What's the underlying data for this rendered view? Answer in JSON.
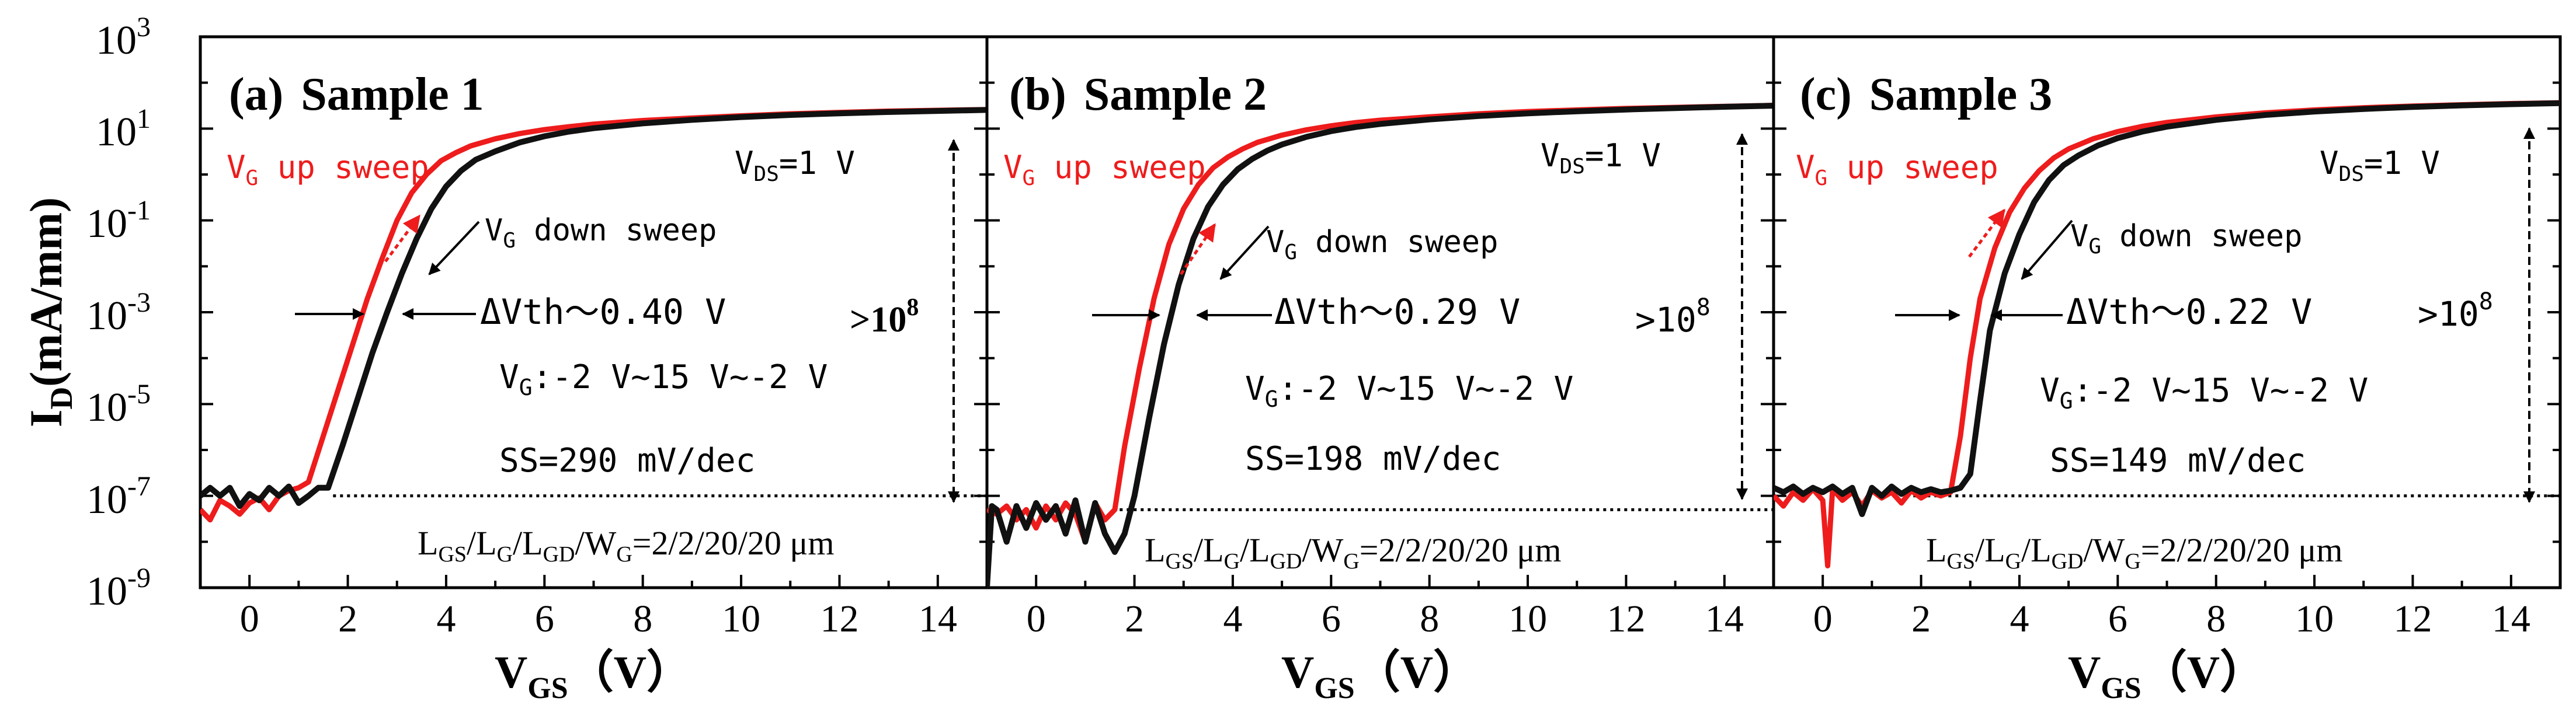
{
  "figure": {
    "ylabel": {
      "main": "I",
      "sub": "D",
      "rest": "(mA/mm)"
    },
    "xlabel": {
      "main": "V",
      "sub": "GS",
      "rest": "（V）"
    },
    "yticks": [
      {
        "base": "10",
        "exp": "3"
      },
      {
        "base": "10",
        "exp": "1"
      },
      {
        "base": "10",
        "exp": "-1"
      },
      {
        "base": "10",
        "exp": "-3"
      },
      {
        "base": "10",
        "exp": "-5"
      },
      {
        "base": "10",
        "exp": "-7"
      },
      {
        "base": "10",
        "exp": "-9"
      }
    ],
    "xticks": [
      "0",
      "2",
      "4",
      "6",
      "8",
      "10",
      "12",
      "14"
    ],
    "colors": {
      "up": "#ee1c1c",
      "down": "#111111",
      "axis": "#000000"
    },
    "common": {
      "up_sweep": {
        "v": "V",
        "sub": "G",
        "text": " up sweep"
      },
      "down_sweep": {
        "v": "V",
        "sub": "G",
        "text": " down sweep"
      },
      "vds": {
        "v": "V",
        "sub": "DS",
        "text": "=1 V"
      },
      "vg_range": {
        "v": "V",
        "sub": "G",
        "text": ":-2 V~15 V~-2 V"
      },
      "geometry_label": {
        "l": "L",
        "s1": "GS",
        "t1": "/L",
        "s2": "G",
        "t2": "/L",
        "s3": "GD",
        "t3": "/W",
        "s4": "G",
        "t4": "=2/2/20/20 μm"
      }
    }
  },
  "chart_data": [
    {
      "type": "line",
      "panel_label": "(a)",
      "title": "Sample 1",
      "delta_vth": "ΔVth～0.40 V",
      "ratio": {
        "base": ">10",
        "exp": "8"
      },
      "ss": "SS=290 mV/dec",
      "xlabel": "VGS (V)",
      "ylabel": "ID (mA/mm)",
      "yscale": "log",
      "xlim": [
        -1,
        15
      ],
      "ylim": [
        1e-09,
        1000
      ],
      "floor_line": 1e-07,
      "series": [
        {
          "name": "VG up sweep",
          "color": "#ee1c1c",
          "x": [
            -1.0,
            -0.8,
            -0.6,
            -0.4,
            -0.2,
            0.0,
            0.2,
            0.4,
            0.6,
            0.8,
            1.0,
            1.2,
            1.5,
            1.8,
            2.1,
            2.4,
            2.7,
            3.0,
            3.3,
            3.6,
            3.9,
            4.2,
            4.5,
            5.0,
            5.5,
            6.0,
            6.5,
            7.0,
            8.0,
            9.0,
            10.0,
            11.0,
            12.0,
            13.0,
            14.0,
            15.0
          ],
          "y": [
            5e-08,
            3e-08,
            8e-08,
            6e-08,
            4e-08,
            7e-08,
            9e-08,
            5e-08,
            1e-07,
            1.3e-07,
            1.5e-07,
            2e-07,
            2e-06,
            2e-05,
            0.0002,
            0.002,
            0.015,
            0.1,
            0.4,
            1.0,
            2.0,
            3.0,
            4.2,
            6.0,
            7.8,
            9.5,
            11,
            12.5,
            15,
            17,
            19,
            21,
            22.5,
            24,
            25,
            26
          ]
        },
        {
          "name": "VG down sweep",
          "color": "#111111",
          "x": [
            -1.0,
            -0.8,
            -0.6,
            -0.4,
            -0.2,
            0.0,
            0.2,
            0.4,
            0.6,
            0.8,
            1.0,
            1.2,
            1.4,
            1.6,
            1.9,
            2.2,
            2.5,
            2.8,
            3.1,
            3.4,
            3.7,
            4.0,
            4.3,
            4.6,
            5.0,
            5.5,
            6.0,
            6.5,
            7.0,
            8.0,
            9.0,
            10.0,
            11.0,
            12.0,
            13.0,
            14.0,
            15.0
          ],
          "y": [
            1e-07,
            1.5e-07,
            1e-07,
            1.5e-07,
            6e-08,
            1.1e-07,
            8e-08,
            1.5e-07,
            1e-07,
            1.6e-07,
            7e-08,
            1e-07,
            1.5e-07,
            1.5e-07,
            1.3e-06,
            1.3e-05,
            0.00013,
            0.001,
            0.007,
            0.04,
            0.18,
            0.55,
            1.2,
            2.1,
            3.2,
            5.0,
            6.8,
            8.6,
            10.2,
            13,
            15.5,
            17.8,
            19.8,
            21.5,
            23,
            24.2,
            25.5
          ]
        }
      ]
    },
    {
      "type": "line",
      "panel_label": "(b)",
      "title": "Sample 2",
      "delta_vth": "ΔVth～0.29 V",
      "ratio": {
        "base": ">10",
        "exp": "8"
      },
      "ss": "SS=198 mV/dec",
      "xlabel": "VGS (V)",
      "ylabel": "ID (mA/mm)",
      "yscale": "log",
      "xlim": [
        -1,
        15
      ],
      "ylim": [
        1e-09,
        1000
      ],
      "floor_line": 5e-08,
      "series": [
        {
          "name": "VG up sweep",
          "color": "#ee1c1c",
          "x": [
            -1.0,
            -0.8,
            -0.6,
            -0.4,
            -0.2,
            0.0,
            0.2,
            0.4,
            0.6,
            0.8,
            1.0,
            1.2,
            1.4,
            1.6,
            1.8,
            2.1,
            2.4,
            2.7,
            3.0,
            3.3,
            3.6,
            3.9,
            4.2,
            4.5,
            5.0,
            5.5,
            6.0,
            6.5,
            7.0,
            8.0,
            9.0,
            10.0,
            11.0,
            12.0,
            13.0,
            14.0,
            15.0
          ],
          "y": [
            5e-08,
            4e-08,
            6e-08,
            3e-08,
            5e-08,
            2e-08,
            6e-08,
            3e-08,
            7e-08,
            4e-08,
            1e-08,
            7e-08,
            3e-08,
            5e-08,
            1.2e-06,
            6e-05,
            0.002,
            0.03,
            0.18,
            0.6,
            1.4,
            2.4,
            3.6,
            5.0,
            7.2,
            9.4,
            11.5,
            13.5,
            15.2,
            18,
            21,
            23.5,
            25.5,
            27.5,
            29,
            30.5,
            32
          ]
        },
        {
          "name": "VG down sweep",
          "color": "#111111",
          "x": [
            -1.0,
            -0.9,
            -0.8,
            -0.6,
            -0.4,
            -0.2,
            0.0,
            0.2,
            0.4,
            0.6,
            0.8,
            1.0,
            1.2,
            1.4,
            1.6,
            1.8,
            2.0,
            2.3,
            2.6,
            2.9,
            3.2,
            3.5,
            3.8,
            4.1,
            4.4,
            4.7,
            5.0,
            5.5,
            6.0,
            6.5,
            7.0,
            8.0,
            9.0,
            10.0,
            11.0,
            12.0,
            13.0,
            14.0,
            15.0
          ],
          "y": [
            1e-09,
            6e-08,
            5e-08,
            1e-08,
            6e-08,
            2e-08,
            7e-08,
            3e-08,
            6e-08,
            1.5e-08,
            8e-08,
            1e-08,
            7e-08,
            1.5e-08,
            6e-09,
            1.5e-08,
            1e-07,
            5e-06,
            0.0002,
            0.004,
            0.04,
            0.2,
            0.6,
            1.3,
            2.2,
            3.3,
            4.5,
            6.6,
            8.8,
            10.8,
            12.6,
            15.8,
            18.8,
            21.5,
            23.8,
            26,
            28,
            29.8,
            31.5
          ]
        }
      ]
    },
    {
      "type": "line",
      "panel_label": "(c)",
      "title": "Sample 3",
      "delta_vth": "ΔVth～0.22 V",
      "ratio": {
        "base": ">10",
        "exp": "8"
      },
      "ss": "SS=149 mV/dec",
      "xlabel": "VGS (V)",
      "ylabel": "ID (mA/mm)",
      "yscale": "log",
      "xlim": [
        -1,
        15
      ],
      "ylim": [
        1e-09,
        1000
      ],
      "floor_line": 1e-07,
      "series": [
        {
          "name": "VG up sweep",
          "color": "#ee1c1c",
          "x": [
            -1.0,
            -0.8,
            -0.6,
            -0.4,
            -0.2,
            0.0,
            0.1,
            0.2,
            0.4,
            0.6,
            0.8,
            1.0,
            1.2,
            1.4,
            1.6,
            1.8,
            2.0,
            2.2,
            2.4,
            2.6,
            2.8,
            3.0,
            3.2,
            3.5,
            3.8,
            4.1,
            4.4,
            4.7,
            5.0,
            5.5,
            6.0,
            6.5,
            7.0,
            8.0,
            9.0,
            10.0,
            11.0,
            12.0,
            13.0,
            14.0,
            15.0
          ],
          "y": [
            1e-07,
            6e-08,
            1.2e-07,
            8e-08,
            1.4e-07,
            8e-08,
            3e-09,
            1.4e-07,
            8e-08,
            1.2e-07,
            6e-08,
            1.3e-07,
            9e-08,
            1.2e-07,
            7e-08,
            1.3e-07,
            9e-08,
            1.2e-07,
            1e-07,
            1.2e-07,
            2e-06,
            0.0001,
            0.002,
            0.025,
            0.15,
            0.5,
            1.2,
            2.3,
            3.6,
            6.0,
            8.6,
            11.2,
            13.6,
            18,
            22,
            25.5,
            28.5,
            31,
            33,
            35,
            36.5
          ]
        },
        {
          "name": "VG down sweep",
          "color": "#111111",
          "x": [
            -1.0,
            -0.8,
            -0.6,
            -0.4,
            -0.2,
            0.0,
            0.2,
            0.4,
            0.6,
            0.8,
            1.0,
            1.2,
            1.4,
            1.6,
            1.8,
            2.0,
            2.2,
            2.4,
            2.6,
            2.8,
            3.0,
            3.2,
            3.4,
            3.7,
            4.0,
            4.3,
            4.6,
            4.9,
            5.2,
            5.6,
            6.0,
            6.5,
            7.0,
            8.0,
            9.0,
            10.0,
            11.0,
            12.0,
            13.0,
            14.0,
            15.0
          ],
          "y": [
            1.5e-07,
            1.2e-07,
            1.6e-07,
            1.1e-07,
            1.5e-07,
            1.2e-07,
            1.6e-07,
            1.1e-07,
            1.5e-07,
            4e-08,
            1.5e-07,
            1e-07,
            1.6e-07,
            1.1e-07,
            1.5e-07,
            1.2e-07,
            1.4e-07,
            1.2e-07,
            1.3e-07,
            1.5e-07,
            3e-07,
            1.2e-05,
            0.0004,
            0.007,
            0.05,
            0.25,
            0.75,
            1.6,
            2.6,
            4.3,
            6.2,
            8.6,
            11,
            15.5,
            19.8,
            23.5,
            26.8,
            29.6,
            32,
            34,
            35.8
          ]
        }
      ]
    }
  ]
}
